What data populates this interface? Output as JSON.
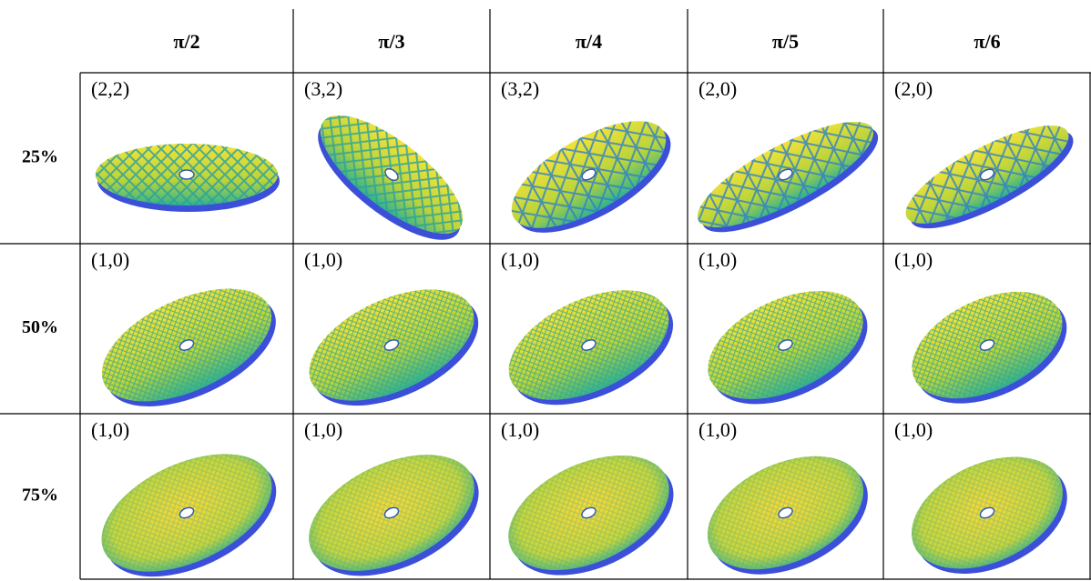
{
  "table": {
    "header": [
      "π/2",
      "π/3",
      "π/4",
      "π/5",
      "π/6"
    ],
    "rows": [
      {
        "label": "25%",
        "cells": [
          "(2,2)",
          "(3,2)",
          "(3,2)",
          "(2,0)",
          "(2,0)"
        ]
      },
      {
        "label": "50%",
        "cells": [
          "(1,0)",
          "(1,0)",
          "(1,0)",
          "(1,0)",
          "(1,0)"
        ]
      },
      {
        "label": "75%",
        "cells": [
          "(1,0)",
          "(1,0)",
          "(1,0)",
          "(1,0)",
          "(1,0)"
        ]
      }
    ]
  }
}
